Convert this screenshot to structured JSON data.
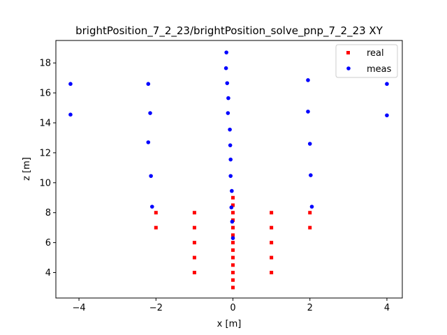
{
  "chart_data": {
    "type": "scatter",
    "title": "brightPosition_7_2_23/brightPosition_solve_pnp_7_2_23 XY",
    "xlabel": "x [m]",
    "ylabel": "z [m]",
    "xlim": [
      -4.6,
      4.4
    ],
    "ylim": [
      2.3,
      19.5
    ],
    "xticks": [
      -4,
      -2,
      0,
      2,
      4
    ],
    "yticks": [
      4,
      6,
      8,
      10,
      12,
      14,
      16,
      18
    ],
    "grid": false,
    "legend_position": "top-right",
    "series": [
      {
        "name": "real",
        "marker": "square",
        "color": "#ff0000",
        "points": [
          [
            0,
            3
          ],
          [
            0,
            3.5
          ],
          [
            0,
            4
          ],
          [
            0,
            4.5
          ],
          [
            0,
            5
          ],
          [
            0,
            5.5
          ],
          [
            0,
            6
          ],
          [
            0,
            6.5
          ],
          [
            0,
            7
          ],
          [
            0,
            7.5
          ],
          [
            0,
            8
          ],
          [
            0,
            8.5
          ],
          [
            0,
            9
          ],
          [
            -1,
            4
          ],
          [
            -1,
            5
          ],
          [
            -1,
            6
          ],
          [
            -1,
            7
          ],
          [
            -1,
            8
          ],
          [
            1,
            4
          ],
          [
            1,
            5
          ],
          [
            1,
            6
          ],
          [
            1,
            7
          ],
          [
            1,
            8
          ],
          [
            -2,
            7
          ],
          [
            -2,
            8
          ],
          [
            2,
            7
          ],
          [
            2,
            8
          ]
        ]
      },
      {
        "name": "meas",
        "marker": "circle",
        "color": "#0000ff",
        "points": [
          [
            -0.17,
            18.7
          ],
          [
            -0.18,
            17.65
          ],
          [
            -0.15,
            16.65
          ],
          [
            -0.12,
            15.65
          ],
          [
            -0.13,
            14.65
          ],
          [
            -0.08,
            13.55
          ],
          [
            -0.07,
            12.5
          ],
          [
            -0.06,
            11.55
          ],
          [
            -0.06,
            10.45
          ],
          [
            -0.03,
            9.45
          ],
          [
            -0.04,
            8.35
          ],
          [
            -0.02,
            7.4
          ],
          [
            0.0,
            6.3
          ],
          [
            -4.22,
            16.6
          ],
          [
            -4.22,
            14.55
          ],
          [
            -2.2,
            16.6
          ],
          [
            -2.15,
            14.65
          ],
          [
            -2.2,
            12.7
          ],
          [
            -2.13,
            10.45
          ],
          [
            -2.1,
            8.4
          ],
          [
            1.95,
            16.85
          ],
          [
            1.95,
            14.75
          ],
          [
            2.0,
            12.6
          ],
          [
            2.02,
            10.5
          ],
          [
            2.05,
            8.4
          ],
          [
            4.0,
            16.6
          ],
          [
            4.0,
            14.5
          ]
        ]
      }
    ]
  }
}
